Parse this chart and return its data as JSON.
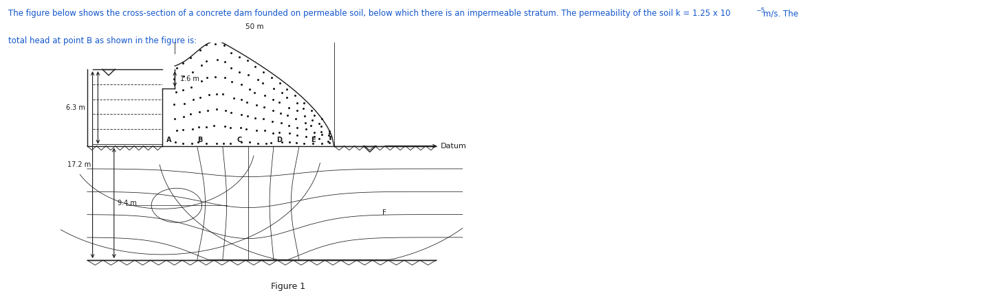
{
  "figure_label": "Figure 1",
  "datum_label": "Datum",
  "dim_50m": "50 m",
  "dim_63m": "6.3 m",
  "dim_16m": "1.6 m",
  "dim_94m": "9.4 m",
  "dim_172m": "17.2 m",
  "bg_color": "#ffffff",
  "line_color": "#1a1a1a",
  "title_main": "The figure below shows the cross-section of a concrete dam founded on permeable soil, below which there is an impermeable stratum. The permeability of the soil k = 1.25 x 10",
  "title_exp": "−5",
  "title_end": " m/s. The",
  "title_line2": "total head at point B as shown in the figure is:"
}
